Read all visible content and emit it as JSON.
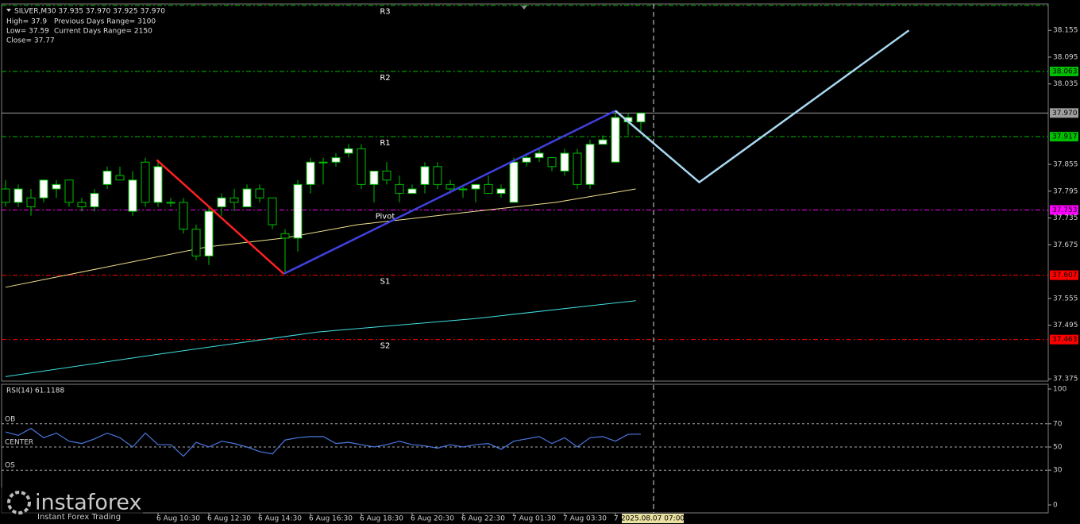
{
  "chart_data": {
    "type": "candlestick",
    "title": "SILVER,M30  37.935 37.970 37.925 37.970",
    "info": [
      "High= 37.9",
      "Previous Days Range= 3100",
      "Low= 37.59",
      "Current Days Range= 2150",
      "Close= 37.77"
    ],
    "xlim": [
      -0.3125,
      82.0625
    ],
    "ylim": [
      37.37,
      38.214
    ],
    "yticks": [
      38.155,
      38.095,
      38.035,
      37.855,
      37.795,
      37.735,
      37.675,
      37.555,
      37.495,
      37.375
    ],
    "xticks": [
      {
        "value": 12,
        "label": "6 Aug 10:30"
      },
      {
        "value": 16,
        "label": "6 Aug 12:30"
      },
      {
        "value": 20,
        "label": "6 Aug 14:30"
      },
      {
        "value": 24,
        "label": "6 Aug 16:30"
      },
      {
        "value": 28,
        "label": "6 Aug 18:30"
      },
      {
        "value": 32,
        "label": "6 Aug 20:30"
      },
      {
        "value": 36,
        "label": "6 Aug 22:30"
      },
      {
        "value": 40,
        "label": "7 Aug 01:30"
      },
      {
        "value": 44,
        "label": "7 Aug 03:30"
      },
      {
        "value": 48,
        "label": "7"
      }
    ],
    "open": [
      37.8,
      37.77,
      37.78,
      37.78,
      37.8,
      37.82,
      37.77,
      37.76,
      37.81,
      37.83,
      37.75,
      37.86,
      37.77,
      37.77,
      37.77,
      37.71,
      37.65,
      37.76,
      37.78,
      37.76,
      37.8,
      37.78,
      37.7,
      37.69,
      37.81,
      37.86,
      37.86,
      37.88,
      37.89,
      37.81,
      37.84,
      37.81,
      37.79,
      37.81,
      37.85,
      37.81,
      37.8,
      37.8,
      37.81,
      37.79,
      37.77,
      37.86,
      37.87,
      37.87,
      37.84,
      37.88,
      37.81,
      37.9,
      37.86,
      37.95,
      37.95
    ],
    "high": [
      37.82,
      37.81,
      37.8,
      37.82,
      37.82,
      37.82,
      37.78,
      37.8,
      37.85,
      37.85,
      37.84,
      37.87,
      37.86,
      37.78,
      37.78,
      37.72,
      37.76,
      37.79,
      37.8,
      37.81,
      37.81,
      37.78,
      37.71,
      37.82,
      37.87,
      37.87,
      37.88,
      37.9,
      37.9,
      37.84,
      37.86,
      37.83,
      37.81,
      37.86,
      37.86,
      37.82,
      37.81,
      37.81,
      37.83,
      37.81,
      37.87,
      37.88,
      37.89,
      37.87,
      37.89,
      37.89,
      37.91,
      37.92,
      37.97,
      37.97,
      37.97
    ],
    "low": [
      37.76,
      37.76,
      37.74,
      37.77,
      37.78,
      37.76,
      37.75,
      37.75,
      37.8,
      37.82,
      37.74,
      37.76,
      37.76,
      37.76,
      37.7,
      37.64,
      37.63,
      37.74,
      37.75,
      37.76,
      37.77,
      37.71,
      37.61,
      37.66,
      37.79,
      37.81,
      37.85,
      37.87,
      37.8,
      37.77,
      37.81,
      37.77,
      37.79,
      37.79,
      37.8,
      37.79,
      37.78,
      37.77,
      37.79,
      37.78,
      37.77,
      37.85,
      37.86,
      37.84,
      37.83,
      37.8,
      37.8,
      37.9,
      37.86,
      37.92,
      37.93
    ],
    "close": [
      37.77,
      37.8,
      37.76,
      37.82,
      37.81,
      37.77,
      37.76,
      37.79,
      37.84,
      37.82,
      37.82,
      37.77,
      37.85,
      37.77,
      37.71,
      37.65,
      37.75,
      37.78,
      37.77,
      37.8,
      37.78,
      37.72,
      37.69,
      37.81,
      37.86,
      37.86,
      37.87,
      37.89,
      37.81,
      37.84,
      37.82,
      37.79,
      37.8,
      37.85,
      37.81,
      37.8,
      37.8,
      37.81,
      37.79,
      37.8,
      37.86,
      37.87,
      37.88,
      37.85,
      37.88,
      37.81,
      37.9,
      37.91,
      37.96,
      37.96,
      37.97
    ],
    "up_color": "#ffffff",
    "down_color": "#000000",
    "wick_color": "#00c000",
    "levels": [
      {
        "name": "R3",
        "value": 38.211,
        "color": "#00c000"
      },
      {
        "name": "R2",
        "value": 38.063,
        "color": "#00c000",
        "label": "38.063"
      },
      {
        "name": "R1",
        "value": 37.917,
        "color": "#00c000",
        "label": "37.917"
      },
      {
        "name": "Pivot",
        "value": 37.753,
        "color": "#ff00ff",
        "label": "37.753"
      },
      {
        "name": "S1",
        "value": 37.607,
        "color": "#ff0000",
        "label": "37.607"
      },
      {
        "name": "S2",
        "value": 37.463,
        "color": "#ff0000",
        "label": "37.463"
      }
    ],
    "last_price": {
      "value": 37.97,
      "label": "37.970",
      "color": "#a0a0a0"
    },
    "moving_averages": [
      {
        "color": "#f0e08c",
        "x": [
          0,
          15.8,
          21.9,
          27.7,
          37,
          43.3,
          49.6
        ],
        "values": [
          37.58,
          37.67,
          37.69,
          37.72,
          37.75,
          37.77,
          37.8
        ]
      },
      {
        "color": "#40e0e0",
        "x": [
          0,
          12,
          24.6,
          37,
          49.6
        ],
        "values": [
          37.38,
          37.43,
          37.48,
          37.51,
          37.55
        ]
      }
    ],
    "trendlines": [
      {
        "color": "#ff2020",
        "x": [
          11.9,
          21.9
        ],
        "values": [
          37.865,
          37.61
        ]
      },
      {
        "color": "#4040e0",
        "x": [
          21.9,
          48
        ],
        "values": [
          37.61,
          37.975
        ]
      },
      {
        "color": "#a8d8f0",
        "x": [
          48,
          54.6,
          71.1
        ],
        "values": [
          37.975,
          37.815,
          38.155
        ]
      }
    ],
    "cursor": {
      "value": 51,
      "label": "2025.08.07 07:00"
    },
    "rsi": {
      "title": "RSI(14) 61.1188",
      "ylim": [
        0,
        100
      ],
      "yticks": [
        100,
        70,
        50,
        30,
        0
      ],
      "levels": [
        {
          "name": "OB",
          "value": 70
        },
        {
          "name": "CENTER",
          "value": 50
        },
        {
          "name": "OS",
          "value": 30
        }
      ],
      "color": "#4a78e0",
      "values": [
        63,
        60,
        66,
        58,
        62,
        55,
        53,
        57,
        62,
        58,
        50,
        62,
        52,
        52,
        42,
        54,
        50,
        55,
        53,
        50,
        46,
        44,
        56,
        58,
        59,
        59,
        53,
        54,
        52,
        50,
        52,
        55,
        52,
        51,
        49,
        52,
        50,
        52,
        53,
        48,
        55,
        57,
        59,
        53,
        58,
        50,
        58,
        59,
        55,
        61,
        61
      ]
    },
    "brand": {
      "name": "instaforex",
      "tagline": "Instant Forex Trading"
    }
  }
}
